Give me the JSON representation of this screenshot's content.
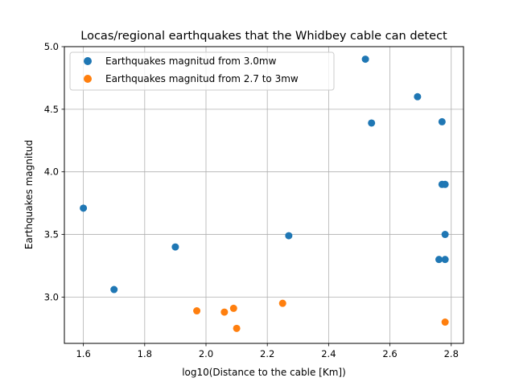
{
  "chart_data": {
    "type": "scatter",
    "title": "Locas/regional earthquakes that the Whidbey cable can detect",
    "xlabel": "log10(Distance to the cable [Km])",
    "ylabel": "Earthquakes magnitud",
    "xlim": [
      1.538,
      2.84
    ],
    "ylim": [
      2.63,
      5.0
    ],
    "grid": true,
    "legend_position": "top-left",
    "x_ticks": [
      "1.6",
      "1.8",
      "2.0",
      "2.2",
      "2.4",
      "2.6",
      "2.8"
    ],
    "y_ticks": [
      "3.0",
      "3.5",
      "4.0",
      "4.5",
      "5.0"
    ],
    "series": [
      {
        "name": "Earthquakes magnitud from 3.0mw",
        "color": "#1f77b4",
        "points": [
          {
            "x": 1.6,
            "y": 3.71
          },
          {
            "x": 1.7,
            "y": 3.06
          },
          {
            "x": 1.9,
            "y": 3.4
          },
          {
            "x": 2.27,
            "y": 3.49
          },
          {
            "x": 2.52,
            "y": 4.9
          },
          {
            "x": 2.54,
            "y": 4.39
          },
          {
            "x": 2.69,
            "y": 4.6
          },
          {
            "x": 2.76,
            "y": 3.3
          },
          {
            "x": 2.77,
            "y": 4.4
          },
          {
            "x": 2.77,
            "y": 3.9
          },
          {
            "x": 2.78,
            "y": 3.9
          },
          {
            "x": 2.78,
            "y": 3.5
          },
          {
            "x": 2.78,
            "y": 3.3
          }
        ]
      },
      {
        "name": "Earthquakes magnitud from 2.7 to 3mw",
        "color": "#ff7f0e",
        "points": [
          {
            "x": 1.97,
            "y": 2.89
          },
          {
            "x": 2.06,
            "y": 2.88
          },
          {
            "x": 2.09,
            "y": 2.91
          },
          {
            "x": 2.1,
            "y": 2.75
          },
          {
            "x": 2.25,
            "y": 2.95
          },
          {
            "x": 2.78,
            "y": 2.8
          }
        ]
      }
    ]
  }
}
